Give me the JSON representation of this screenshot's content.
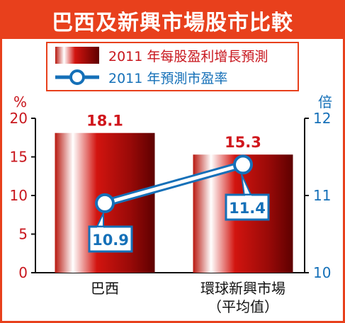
{
  "title": "巴西及新興市場股市比較",
  "legend": {
    "bar_label": "2011 年每股盈利增長預測",
    "line_label": "2011 年預測市盈率"
  },
  "colors": {
    "frame": "#e8401c",
    "bar_dark": "#6b0000",
    "bar_mid": "#c4120e",
    "bar_light": "#ffffff",
    "line": "#1570b8",
    "left_axis": "#c8161d",
    "right_axis": "#1570b8",
    "value_red": "#d0161c",
    "value_blue": "#1570b8"
  },
  "chart_data": {
    "type": "bar",
    "categories": [
      "巴西",
      "環球新興市場\n（平均值）"
    ],
    "series": [
      {
        "name": "2011 年每股盈利增長預測",
        "type": "bar",
        "axis": "left",
        "values": [
          18.1,
          15.3
        ],
        "labels": [
          "18.1",
          "15.3"
        ]
      },
      {
        "name": "2011 年預測市盈率",
        "type": "line",
        "axis": "right",
        "values": [
          10.9,
          11.4
        ],
        "labels": [
          "10.9",
          "11.4"
        ]
      }
    ],
    "left_axis": {
      "label": "%",
      "ylim": [
        0,
        20
      ],
      "ticks": [
        "0",
        "5",
        "10",
        "15",
        "20"
      ]
    },
    "right_axis": {
      "label": "倍",
      "ylim": [
        10,
        12
      ],
      "ticks": [
        "10",
        "11",
        "12"
      ]
    },
    "legend_position": "top"
  }
}
